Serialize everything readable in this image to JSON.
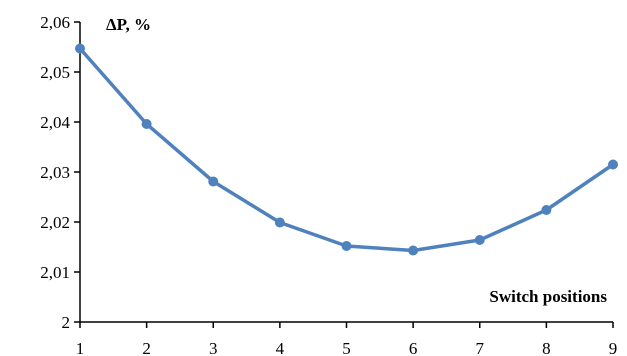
{
  "chart_data": {
    "type": "line",
    "title": "",
    "xlabel": "Switch positions",
    "ylabel": "ΔP, %",
    "x": [
      1,
      2,
      3,
      4,
      5,
      6,
      7,
      8,
      9
    ],
    "series": [
      {
        "values": [
          2.0547,
          2.0396,
          2.0281,
          2.0199,
          2.0152,
          2.0143,
          2.0164,
          2.0224,
          2.0315
        ]
      }
    ],
    "xlim": [
      1,
      9
    ],
    "ylim": [
      2,
      2.06
    ],
    "x_ticks": [
      "1",
      "2",
      "3",
      "4",
      "5",
      "6",
      "7",
      "8",
      "9"
    ],
    "y_ticks": [
      "2",
      "2,01",
      "2,02",
      "2,03",
      "2,04",
      "2,05",
      "2,06"
    ],
    "grid": false,
    "line_color": "#4f81bd"
  }
}
